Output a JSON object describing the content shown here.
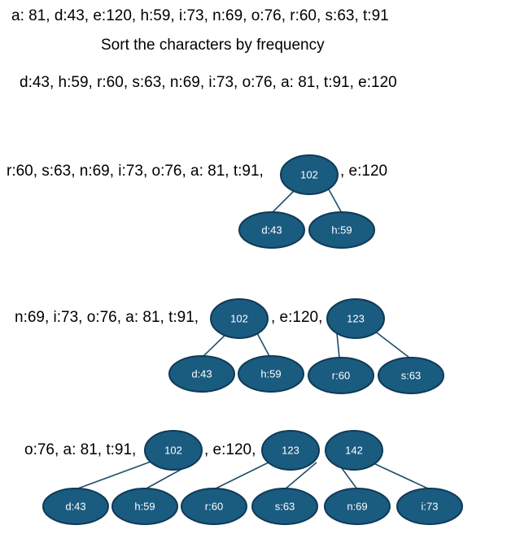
{
  "texts": {
    "original_frequencies": "a: 81, d:43, e:120, h:59, i:73, n:69, o:76, r:60, s:63, t:91",
    "instruction": "Sort the characters by frequency",
    "sorted_list": "d:43, h:59, r:60, s:63, n:69, i:73, o:76, a: 81, t:91, e:120",
    "step1_left": "r:60, s:63, n:69, i:73, o:76, a: 81, t:91,",
    "step1_right": ", e:120",
    "step2_left": "n:69, i:73, o:76, a: 81, t:91,",
    "step2_mid": ", e:120,",
    "step3_left": "o:76, a: 81, t:91,",
    "step3_mid": ", e:120,"
  },
  "nodes": {
    "s1_102": "102",
    "s1_d43": "d:43",
    "s1_h59": "h:59",
    "s2_102": "102",
    "s2_d43": "d:43",
    "s2_h59": "h:59",
    "s2_123": "123",
    "s2_r60": "r:60",
    "s2_s63": "s:63",
    "s3_102": "102",
    "s3_123": "123",
    "s3_142": "142",
    "s3_d43": "d:43",
    "s3_h59": "h:59",
    "s3_r60": "r:60",
    "s3_s63": "s:63",
    "s3_n69": "n:69",
    "s3_i73": "i:73"
  },
  "colors": {
    "node_fill": "#1a5b80",
    "node_text": "#ffffff"
  }
}
